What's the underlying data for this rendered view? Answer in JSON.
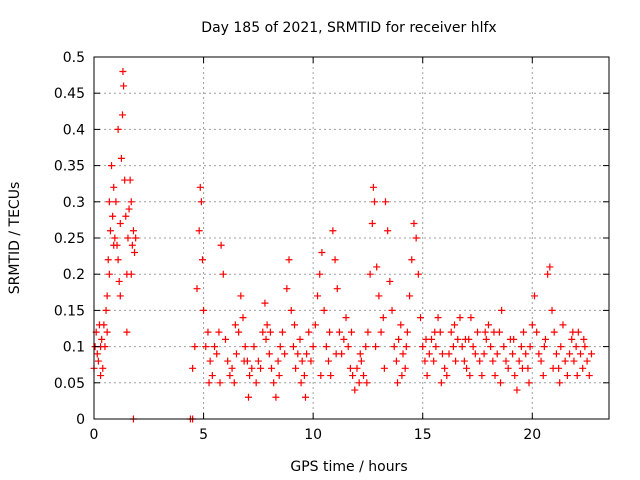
{
  "chart_data": {
    "type": "scatter",
    "title": "Day 185 of 2021, SRMTID for receiver hlfx",
    "xlabel": "GPS time / hours",
    "ylabel": "SRMTID / TECUs",
    "xlim": [
      0,
      23.5
    ],
    "ylim": [
      0,
      0.5
    ],
    "xticks": [
      0,
      5,
      10,
      15,
      20
    ],
    "yticks": [
      0,
      0.05,
      0.1,
      0.15,
      0.2,
      0.25,
      0.3,
      0.35,
      0.4,
      0.45,
      0.5
    ],
    "xtick_labels": [
      "0",
      "5",
      "10",
      "15",
      "20"
    ],
    "ytick_labels": [
      "0",
      "0.05",
      "0.1",
      "0.15",
      "0.2",
      "0.25",
      "0.3",
      "0.35",
      "0.4",
      "0.45",
      "0.5"
    ],
    "grid": true,
    "marker": "plus",
    "color": "#ff0000",
    "series": [
      {
        "points": [
          [
            0.0,
            0.07
          ],
          [
            0.05,
            0.1
          ],
          [
            0.1,
            0.12
          ],
          [
            0.15,
            0.09
          ],
          [
            0.2,
            0.08
          ],
          [
            0.25,
            0.13
          ],
          [
            0.3,
            0.06
          ],
          [
            0.35,
            0.11
          ],
          [
            0.4,
            0.07
          ],
          [
            0.45,
            0.13
          ],
          [
            0.5,
            0.1
          ],
          [
            0.55,
            0.15
          ],
          [
            0.6,
            0.17
          ],
          [
            0.65,
            0.22
          ],
          [
            0.7,
            0.3
          ],
          [
            0.75,
            0.26
          ],
          [
            0.8,
            0.35
          ],
          [
            0.85,
            0.28
          ],
          [
            0.9,
            0.32
          ],
          [
            0.95,
            0.25
          ],
          [
            1.0,
            0.3
          ],
          [
            1.05,
            0.24
          ],
          [
            1.1,
            0.22
          ],
          [
            1.15,
            0.19
          ],
          [
            1.2,
            0.17
          ],
          [
            1.25,
            0.36
          ],
          [
            1.3,
            0.42
          ],
          [
            1.32,
            0.48
          ],
          [
            1.35,
            0.46
          ],
          [
            1.4,
            0.33
          ],
          [
            1.45,
            0.28
          ],
          [
            1.5,
            0.2
          ],
          [
            1.55,
            0.25
          ],
          [
            1.6,
            0.29
          ],
          [
            1.65,
            0.33
          ],
          [
            1.7,
            0.3
          ],
          [
            1.75,
            0.24
          ],
          [
            1.8,
            0.26
          ],
          [
            1.85,
            0.23
          ],
          [
            1.9,
            0.25
          ],
          [
            0.3,
            0.1
          ],
          [
            0.6,
            0.12
          ],
          [
            0.9,
            0.24
          ],
          [
            1.1,
            0.4
          ],
          [
            1.2,
            0.27
          ],
          [
            1.5,
            0.12
          ],
          [
            1.7,
            0.2
          ],
          [
            0.7,
            0.2
          ],
          [
            1.8,
            0.0
          ],
          [
            4.4,
            0.0
          ],
          [
            4.5,
            0.0
          ],
          [
            4.5,
            0.07
          ],
          [
            4.6,
            0.1
          ],
          [
            4.7,
            0.18
          ],
          [
            4.8,
            0.26
          ],
          [
            4.85,
            0.32
          ],
          [
            4.9,
            0.3
          ],
          [
            4.95,
            0.22
          ],
          [
            5.0,
            0.15
          ],
          [
            5.1,
            0.1
          ],
          [
            5.2,
            0.12
          ],
          [
            5.3,
            0.08
          ],
          [
            5.4,
            0.06
          ],
          [
            5.5,
            0.1
          ],
          [
            5.6,
            0.09
          ],
          [
            5.7,
            0.12
          ],
          [
            5.8,
            0.24
          ],
          [
            5.9,
            0.2
          ],
          [
            6.0,
            0.11
          ],
          [
            6.1,
            0.08
          ],
          [
            6.2,
            0.06
          ],
          [
            6.3,
            0.07
          ],
          [
            6.4,
            0.05
          ],
          [
            6.5,
            0.09
          ],
          [
            6.6,
            0.12
          ],
          [
            6.7,
            0.17
          ],
          [
            6.8,
            0.14
          ],
          [
            6.9,
            0.1
          ],
          [
            7.0,
            0.08
          ],
          [
            7.1,
            0.06
          ],
          [
            7.2,
            0.07
          ],
          [
            7.3,
            0.1
          ],
          [
            7.4,
            0.05
          ],
          [
            7.5,
            0.08
          ],
          [
            7.6,
            0.07
          ],
          [
            7.7,
            0.12
          ],
          [
            7.8,
            0.16
          ],
          [
            7.9,
            0.13
          ],
          [
            8.0,
            0.09
          ],
          [
            8.1,
            0.07
          ],
          [
            8.2,
            0.05
          ],
          [
            8.3,
            0.03
          ],
          [
            8.4,
            0.08
          ],
          [
            8.5,
            0.1
          ],
          [
            8.6,
            0.12
          ],
          [
            8.7,
            0.09
          ],
          [
            8.8,
            0.18
          ],
          [
            8.9,
            0.22
          ],
          [
            9.0,
            0.15
          ],
          [
            9.1,
            0.1
          ],
          [
            9.2,
            0.07
          ],
          [
            9.3,
            0.09
          ],
          [
            9.4,
            0.11
          ],
          [
            9.5,
            0.08
          ],
          [
            9.6,
            0.06
          ],
          [
            9.7,
            0.09
          ],
          [
            9.8,
            0.12
          ],
          [
            9.9,
            0.08
          ],
          [
            10.0,
            0.1
          ],
          [
            10.1,
            0.13
          ],
          [
            10.2,
            0.17
          ],
          [
            10.3,
            0.2
          ],
          [
            10.4,
            0.23
          ],
          [
            10.5,
            0.15
          ],
          [
            10.6,
            0.1
          ],
          [
            10.7,
            0.08
          ],
          [
            10.8,
            0.06
          ],
          [
            10.9,
            0.26
          ],
          [
            11.0,
            0.22
          ],
          [
            11.1,
            0.18
          ],
          [
            11.2,
            0.12
          ],
          [
            11.3,
            0.09
          ],
          [
            11.4,
            0.11
          ],
          [
            11.5,
            0.14
          ],
          [
            11.6,
            0.1
          ],
          [
            11.7,
            0.07
          ],
          [
            11.8,
            0.06
          ],
          [
            11.9,
            0.04
          ],
          [
            12.0,
            0.07
          ],
          [
            12.1,
            0.05
          ],
          [
            12.2,
            0.08
          ],
          [
            12.3,
            0.06
          ],
          [
            12.4,
            0.1
          ],
          [
            12.5,
            0.12
          ],
          [
            12.6,
            0.2
          ],
          [
            12.7,
            0.27
          ],
          [
            12.75,
            0.32
          ],
          [
            12.8,
            0.3
          ],
          [
            12.9,
            0.21
          ],
          [
            13.0,
            0.17
          ],
          [
            13.1,
            0.12
          ],
          [
            13.2,
            0.14
          ],
          [
            13.3,
            0.3
          ],
          [
            13.4,
            0.26
          ],
          [
            13.5,
            0.19
          ],
          [
            13.6,
            0.15
          ],
          [
            13.7,
            0.1
          ],
          [
            13.8,
            0.08
          ],
          [
            13.9,
            0.11
          ],
          [
            14.0,
            0.13
          ],
          [
            14.1,
            0.09
          ],
          [
            14.2,
            0.07
          ],
          [
            14.3,
            0.12
          ],
          [
            14.4,
            0.17
          ],
          [
            14.5,
            0.22
          ],
          [
            14.6,
            0.27
          ],
          [
            14.7,
            0.25
          ],
          [
            14.8,
            0.2
          ],
          [
            14.9,
            0.14
          ],
          [
            15.0,
            0.1
          ],
          [
            15.1,
            0.08
          ],
          [
            15.2,
            0.06
          ],
          [
            15.3,
            0.09
          ],
          [
            15.4,
            0.11
          ],
          [
            15.5,
            0.08
          ],
          [
            15.6,
            0.1
          ],
          [
            15.7,
            0.14
          ],
          [
            15.8,
            0.12
          ],
          [
            15.9,
            0.09
          ],
          [
            16.0,
            0.07
          ],
          [
            16.1,
            0.06
          ],
          [
            16.2,
            0.09
          ],
          [
            16.3,
            0.12
          ],
          [
            16.4,
            0.1
          ],
          [
            16.5,
            0.08
          ],
          [
            16.6,
            0.11
          ],
          [
            16.7,
            0.14
          ],
          [
            16.8,
            0.1
          ],
          [
            16.9,
            0.08
          ],
          [
            17.0,
            0.07
          ],
          [
            17.1,
            0.11
          ],
          [
            17.2,
            0.14
          ],
          [
            17.3,
            0.1
          ],
          [
            17.4,
            0.09
          ],
          [
            17.5,
            0.12
          ],
          [
            17.6,
            0.08
          ],
          [
            17.7,
            0.06
          ],
          [
            17.8,
            0.09
          ],
          [
            17.9,
            0.11
          ],
          [
            18.0,
            0.13
          ],
          [
            18.1,
            0.1
          ],
          [
            18.2,
            0.08
          ],
          [
            18.3,
            0.06
          ],
          [
            18.4,
            0.09
          ],
          [
            18.5,
            0.12
          ],
          [
            18.6,
            0.15
          ],
          [
            18.7,
            0.1
          ],
          [
            18.8,
            0.08
          ],
          [
            18.9,
            0.07
          ],
          [
            19.0,
            0.11
          ],
          [
            19.1,
            0.09
          ],
          [
            19.2,
            0.06
          ],
          [
            19.3,
            0.04
          ],
          [
            19.4,
            0.08
          ],
          [
            19.5,
            0.1
          ],
          [
            19.6,
            0.12
          ],
          [
            19.7,
            0.09
          ],
          [
            19.8,
            0.07
          ],
          [
            19.9,
            0.1
          ],
          [
            20.0,
            0.13
          ],
          [
            20.1,
            0.17
          ],
          [
            20.2,
            0.12
          ],
          [
            20.3,
            0.09
          ],
          [
            20.4,
            0.08
          ],
          [
            20.5,
            0.06
          ],
          [
            20.6,
            0.11
          ],
          [
            20.7,
            0.2
          ],
          [
            20.8,
            0.21
          ],
          [
            20.9,
            0.15
          ],
          [
            21.0,
            0.12
          ],
          [
            21.1,
            0.09
          ],
          [
            21.2,
            0.07
          ],
          [
            21.3,
            0.1
          ],
          [
            21.4,
            0.13
          ],
          [
            21.5,
            0.08
          ],
          [
            21.6,
            0.06
          ],
          [
            21.7,
            0.09
          ],
          [
            21.8,
            0.11
          ],
          [
            21.9,
            0.08
          ],
          [
            22.0,
            0.1
          ],
          [
            22.1,
            0.12
          ],
          [
            22.2,
            0.09
          ],
          [
            22.3,
            0.07
          ],
          [
            22.4,
            0.1
          ],
          [
            22.5,
            0.08
          ],
          [
            22.6,
            0.06
          ],
          [
            22.7,
            0.09
          ],
          [
            5.25,
            0.05
          ],
          [
            6.45,
            0.13
          ],
          [
            7.05,
            0.03
          ],
          [
            7.85,
            0.11
          ],
          [
            8.45,
            0.06
          ],
          [
            9.15,
            0.13
          ],
          [
            9.65,
            0.03
          ],
          [
            10.35,
            0.06
          ],
          [
            11.05,
            0.09
          ],
          [
            11.75,
            0.12
          ],
          [
            12.15,
            0.09
          ],
          [
            12.85,
            0.1
          ],
          [
            13.25,
            0.07
          ],
          [
            13.85,
            0.05
          ],
          [
            14.25,
            0.1
          ],
          [
            15.15,
            0.11
          ],
          [
            15.85,
            0.05
          ],
          [
            16.45,
            0.13
          ],
          [
            17.15,
            0.06
          ],
          [
            17.85,
            0.12
          ],
          [
            18.55,
            0.05
          ],
          [
            19.15,
            0.11
          ],
          [
            19.85,
            0.05
          ],
          [
            20.55,
            0.1
          ],
          [
            21.25,
            0.05
          ],
          [
            21.85,
            0.12
          ],
          [
            22.35,
            0.11
          ],
          [
            5.75,
            0.05
          ],
          [
            6.85,
            0.08
          ],
          [
            8.05,
            0.12
          ],
          [
            9.45,
            0.05
          ],
          [
            10.75,
            0.12
          ],
          [
            12.45,
            0.05
          ],
          [
            14.05,
            0.06
          ],
          [
            15.55,
            0.12
          ],
          [
            16.95,
            0.11
          ],
          [
            18.25,
            0.12
          ],
          [
            19.55,
            0.07
          ],
          [
            20.95,
            0.07
          ],
          [
            22.05,
            0.06
          ]
        ]
      }
    ]
  }
}
